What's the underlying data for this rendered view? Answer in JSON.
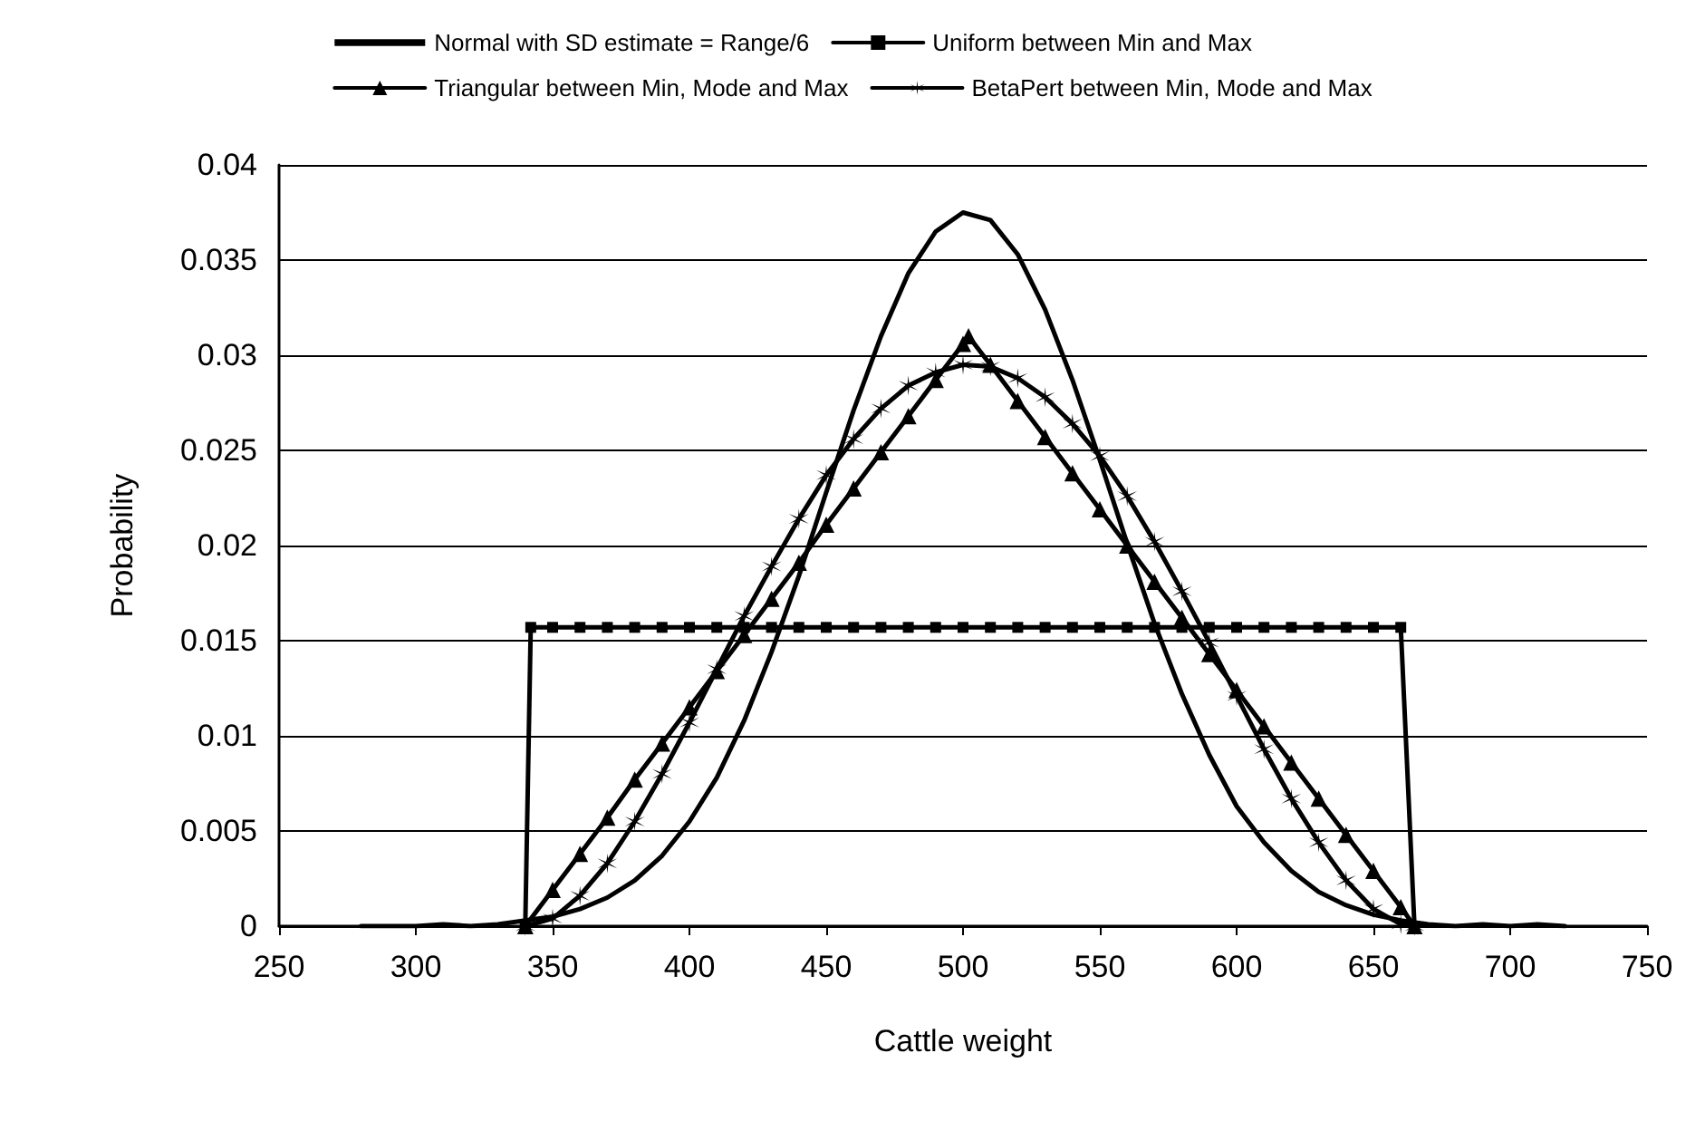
{
  "chart_data": {
    "type": "line",
    "xlabel": "Cattle weight",
    "ylabel": "Probability",
    "xlim": [
      250,
      750
    ],
    "xticks": [
      250,
      300,
      350,
      400,
      450,
      500,
      550,
      600,
      650,
      700,
      750
    ],
    "ylim": [
      0,
      0.04
    ],
    "yticks": [
      0,
      0.005,
      0.01,
      0.015,
      0.02,
      0.025,
      0.03,
      0.035,
      0.04
    ],
    "grid": "y",
    "legend": "top",
    "series": [
      {
        "name": "Normal with SD estimate = Range/6",
        "color": "#000000",
        "marker": "none",
        "x": [
          280,
          290,
          300,
          310,
          320,
          330,
          340,
          350,
          360,
          370,
          380,
          390,
          400,
          410,
          420,
          430,
          440,
          450,
          460,
          470,
          480,
          490,
          500,
          510,
          520,
          530,
          540,
          550,
          560,
          570,
          580,
          590,
          600,
          610,
          620,
          630,
          640,
          650,
          660,
          670,
          680,
          690,
          700,
          710,
          720
        ],
        "values": [
          0,
          0,
          0,
          0.0001,
          0,
          0.0001,
          0.0003,
          0.0005,
          0.0009,
          0.0015,
          0.0024,
          0.0037,
          0.0055,
          0.0078,
          0.0108,
          0.0144,
          0.0184,
          0.0228,
          0.0271,
          0.031,
          0.0343,
          0.0365,
          0.0375,
          0.0371,
          0.0353,
          0.0324,
          0.0287,
          0.0245,
          0.0201,
          0.0159,
          0.0122,
          0.009,
          0.0063,
          0.0044,
          0.0029,
          0.0018,
          0.0011,
          0.0006,
          0.0003,
          0.0001,
          0,
          0.0001,
          0,
          0.0001,
          0
        ]
      },
      {
        "name": "Uniform between Min and Max",
        "color": "#000000",
        "marker": "square",
        "x": [
          340,
          342,
          350,
          360,
          370,
          380,
          390,
          400,
          410,
          420,
          430,
          440,
          450,
          460,
          470,
          480,
          490,
          500,
          510,
          520,
          530,
          540,
          550,
          560,
          570,
          580,
          590,
          600,
          610,
          620,
          630,
          640,
          650,
          660,
          665
        ],
        "values": [
          0,
          0.0157,
          0.0157,
          0.0157,
          0.0157,
          0.0157,
          0.0157,
          0.0157,
          0.0157,
          0.0157,
          0.0157,
          0.0157,
          0.0157,
          0.0157,
          0.0157,
          0.0157,
          0.0157,
          0.0157,
          0.0157,
          0.0157,
          0.0157,
          0.0157,
          0.0157,
          0.0157,
          0.0157,
          0.0157,
          0.0157,
          0.0157,
          0.0157,
          0.0157,
          0.0157,
          0.0157,
          0.0157,
          0.0157,
          0
        ]
      },
      {
        "name": "Triangular between Min, Mode and Max",
        "color": "#000000",
        "marker": "triangle",
        "x": [
          340,
          350,
          360,
          370,
          380,
          390,
          400,
          410,
          420,
          430,
          440,
          450,
          460,
          470,
          480,
          490,
          500,
          502,
          510,
          520,
          530,
          540,
          550,
          560,
          570,
          580,
          590,
          600,
          610,
          620,
          630,
          640,
          650,
          660,
          665
        ],
        "values": [
          0,
          0.0019,
          0.0038,
          0.0057,
          0.0077,
          0.0096,
          0.0115,
          0.0134,
          0.0153,
          0.0172,
          0.0191,
          0.0211,
          0.023,
          0.0249,
          0.0268,
          0.0287,
          0.0306,
          0.031,
          0.0295,
          0.0276,
          0.0257,
          0.0238,
          0.0219,
          0.02,
          0.0181,
          0.0162,
          0.0143,
          0.0124,
          0.0105,
          0.0086,
          0.0067,
          0.0048,
          0.0029,
          0.001,
          0
        ]
      },
      {
        "name": "BetaPert between Min, Mode and Max",
        "color": "#000000",
        "marker": "cross",
        "x": [
          340,
          350,
          360,
          370,
          380,
          390,
          400,
          410,
          420,
          430,
          440,
          450,
          460,
          470,
          480,
          490,
          500,
          510,
          520,
          530,
          540,
          550,
          560,
          570,
          580,
          590,
          600,
          610,
          620,
          630,
          640,
          650,
          660,
          665
        ],
        "values": [
          0,
          0.0004,
          0.0016,
          0.0033,
          0.0055,
          0.008,
          0.0107,
          0.0135,
          0.0163,
          0.0189,
          0.0214,
          0.0237,
          0.0256,
          0.0272,
          0.0284,
          0.0291,
          0.0295,
          0.0294,
          0.0288,
          0.0278,
          0.0264,
          0.0247,
          0.0226,
          0.0202,
          0.0176,
          0.0149,
          0.0121,
          0.0093,
          0.0067,
          0.0044,
          0.0024,
          0.0009,
          0.0001,
          0
        ]
      }
    ]
  }
}
